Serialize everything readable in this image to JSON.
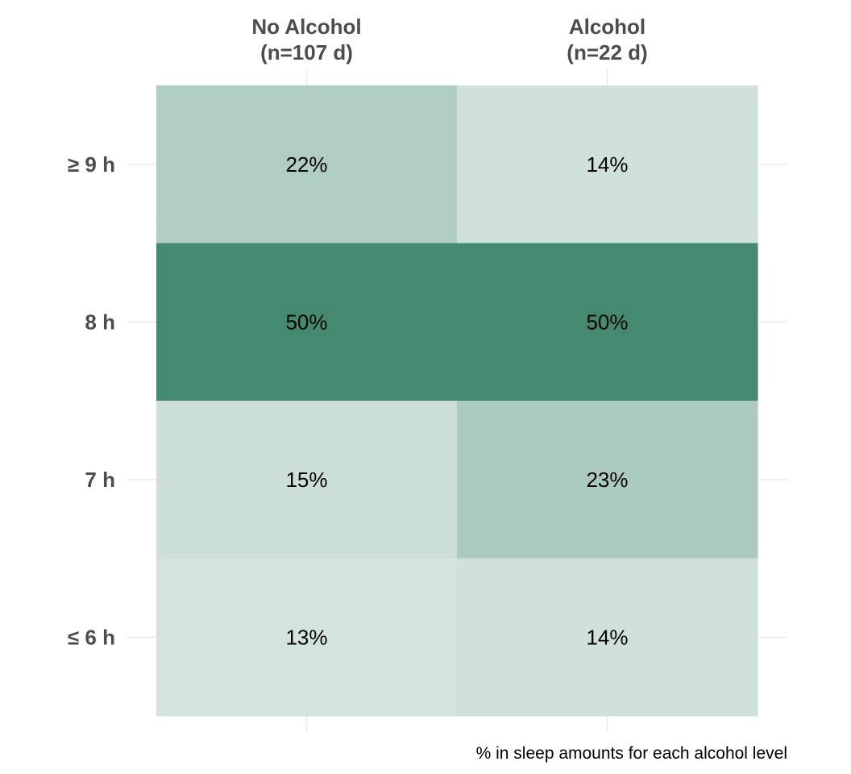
{
  "chart_data": {
    "type": "heatmap",
    "columns": [
      {
        "line1": "No Alcohol",
        "line2": "(n=107 d)"
      },
      {
        "line1": "Alcohol",
        "line2": "(n=22 d)"
      }
    ],
    "rows": [
      "≥ 9 h",
      "8 h",
      "7 h",
      "≤ 6 h"
    ],
    "values": [
      [
        22,
        14
      ],
      [
        50,
        50
      ],
      [
        15,
        23
      ],
      [
        13,
        14
      ]
    ],
    "value_labels": [
      [
        "22%",
        "14%"
      ],
      [
        "50%",
        "50%"
      ],
      [
        "15%",
        "23%"
      ],
      [
        "13%",
        "14%"
      ]
    ],
    "caption": "% in sleep amounts for each alcohol level",
    "color_scale": {
      "low": "#d3e3dd",
      "high": "#448a71"
    },
    "grid": true
  }
}
